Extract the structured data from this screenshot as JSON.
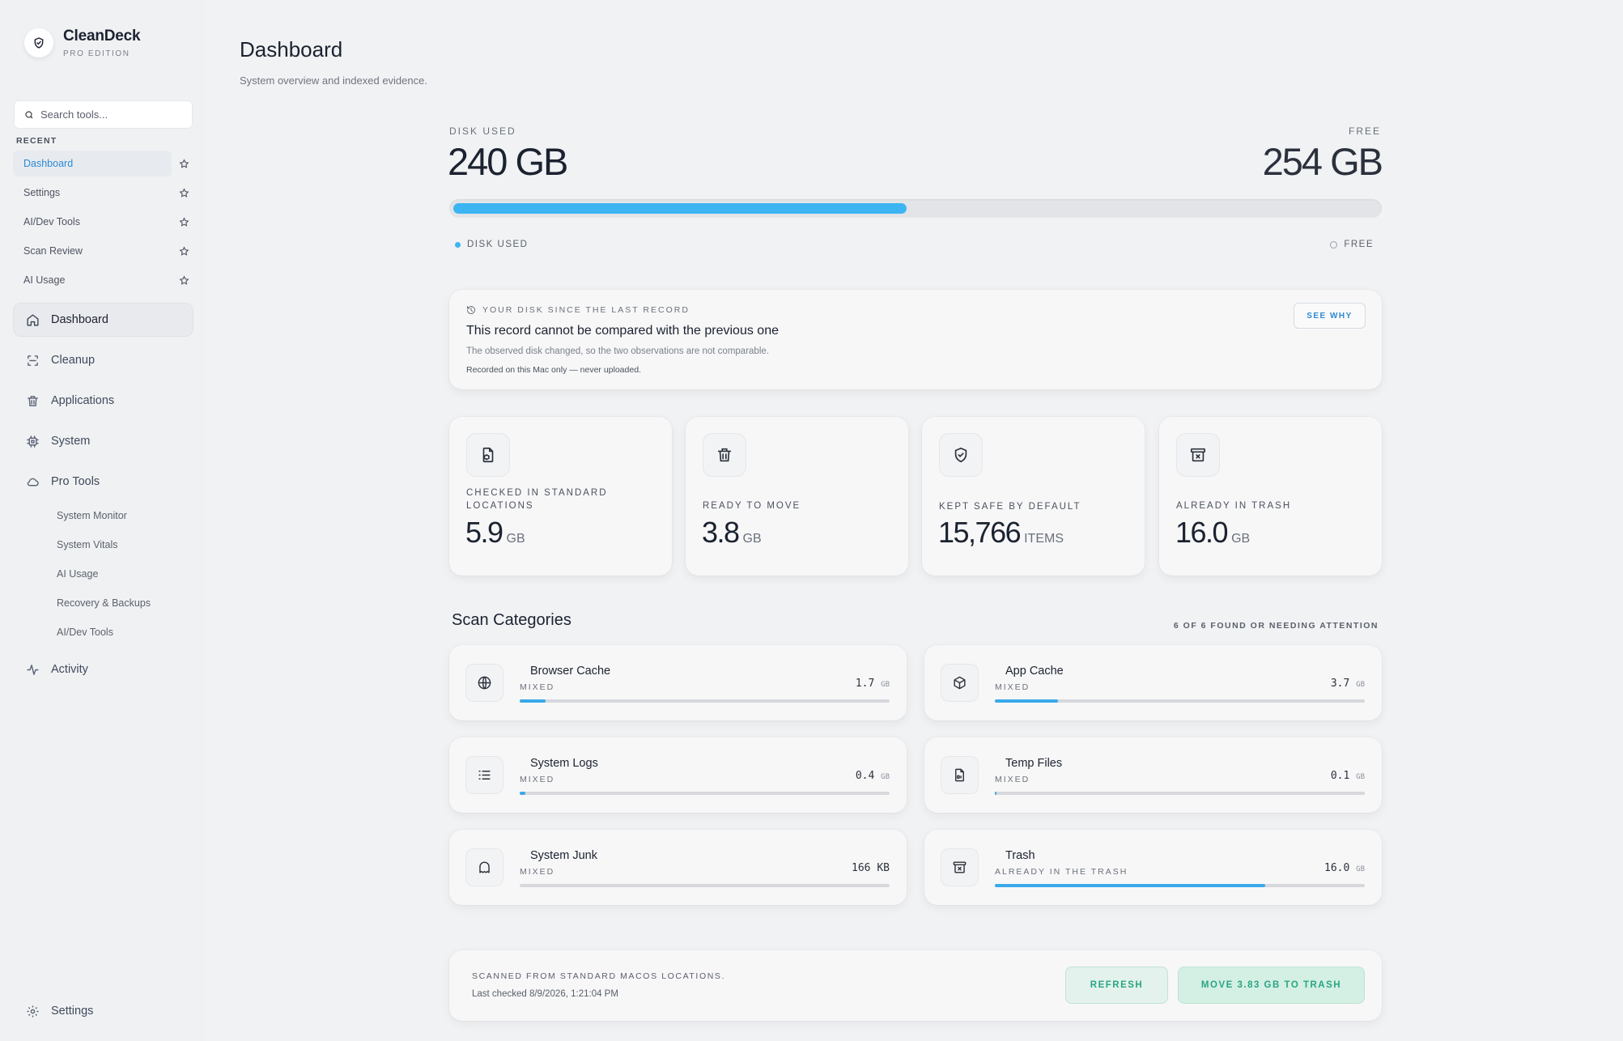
{
  "app": {
    "name": "CleanDeck",
    "edition": "PRO EDITION"
  },
  "sidebar": {
    "search_placeholder": "Search tools...",
    "recent_title": "RECENT",
    "recent": [
      {
        "label": "Dashboard",
        "active": true
      },
      {
        "label": "Settings"
      },
      {
        "label": "AI/Dev Tools"
      },
      {
        "label": "Scan Review"
      },
      {
        "label": "AI Usage"
      }
    ],
    "nav": [
      {
        "label": "Dashboard",
        "icon": "home-icon",
        "active": true
      },
      {
        "label": "Cleanup",
        "icon": "scan-icon"
      },
      {
        "label": "Applications",
        "icon": "trash-icon"
      },
      {
        "label": "System",
        "icon": "chip-icon"
      },
      {
        "label": "Pro Tools",
        "icon": "cloud-icon"
      }
    ],
    "pro_tools": [
      "System Monitor",
      "System Vitals",
      "AI Usage",
      "Recovery & Backups",
      "AI/Dev Tools"
    ],
    "activity": "Activity",
    "settings": "Settings"
  },
  "main": {
    "title": "Dashboard",
    "subtitle": "System overview and indexed evidence."
  },
  "disk": {
    "used_label": "DISK USED",
    "used_value": "240 GB",
    "free_label": "FREE",
    "free_value": "254 GB",
    "used_fraction": 0.486,
    "legend_used": "DISK USED",
    "legend_free": "FREE",
    "color_used": "#3db5f3"
  },
  "record": {
    "kicker": "YOUR DISK SINCE THE LAST RECORD",
    "title": "This record cannot be compared with the previous one",
    "description": "The observed disk changed, so the two observations are not comparable.",
    "note": "Recorded on this Mac only — never uploaded.",
    "button": "SEE WHY"
  },
  "stats": [
    {
      "label": "CHECKED IN STANDARD LOCATIONS",
      "value": "5.9",
      "unit": "GB",
      "icon": "document-search-icon"
    },
    {
      "label": "READY TO MOVE",
      "value": "3.8",
      "unit": "GB",
      "icon": "trash-icon"
    },
    {
      "label": "KEPT SAFE BY DEFAULT",
      "value": "15,766",
      "unit": "ITEMS",
      "icon": "shield-check-icon"
    },
    {
      "label": "ALREADY IN TRASH",
      "value": "16.0",
      "unit": "GB",
      "icon": "archive-x-icon"
    }
  ],
  "scan": {
    "title": "Scan Categories",
    "count": "6 OF 6 FOUND OR NEEDING ATTENTION",
    "categories": [
      {
        "name": "Browser Cache",
        "kind": "MIXED",
        "size": "1.7",
        "unit": "GB",
        "fraction": 0.07,
        "icon": "globe-icon"
      },
      {
        "name": "App Cache",
        "kind": "MIXED",
        "size": "3.7",
        "unit": "GB",
        "fraction": 0.17,
        "icon": "box-icon"
      },
      {
        "name": "System Logs",
        "kind": "MIXED",
        "size": "0.4",
        "unit": "GB",
        "fraction": 0.015,
        "icon": "list-icon"
      },
      {
        "name": "Temp Files",
        "kind": "MIXED",
        "size": "0.1",
        "unit": "GB",
        "fraction": 0.005,
        "icon": "file-code-icon"
      },
      {
        "name": "System Junk",
        "kind": "MIXED",
        "size": "166 KB",
        "unit": "",
        "fraction": 0.0,
        "icon": "ghost-icon"
      },
      {
        "name": "Trash",
        "kind": "ALREADY IN THE TRASH",
        "size": "16.0",
        "unit": "GB",
        "fraction": 0.73,
        "icon": "archive-x-icon"
      }
    ]
  },
  "footer": {
    "kicker": "SCANNED FROM STANDARD MACOS LOCATIONS.",
    "time": "Last checked 8/9/2026, 1:21:04 PM",
    "refresh": "REFRESH",
    "move": "MOVE 3.83 GB TO TRASH"
  }
}
